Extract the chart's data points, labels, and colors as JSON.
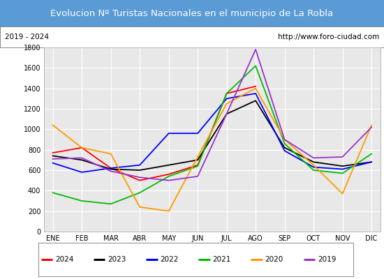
{
  "title": "Evolucion Nº Turistas Nacionales en el municipio de La Robla",
  "subtitle_left": "2019 - 2024",
  "subtitle_right": "http://www.foro-ciudad.com",
  "title_bg_color": "#5b9bd5",
  "title_text_color": "#ffffff",
  "months": [
    "ENE",
    "FEB",
    "MAR",
    "ABR",
    "MAY",
    "JUN",
    "JUL",
    "AGO",
    "SEP",
    "OCT",
    "NOV",
    "DIC"
  ],
  "ylim": [
    0,
    1800
  ],
  "yticks": [
    0,
    200,
    400,
    600,
    800,
    1000,
    1200,
    1400,
    1600,
    1800
  ],
  "series": {
    "2024": {
      "color": "#ff0000",
      "data": [
        770,
        820,
        620,
        500,
        560,
        650,
        1350,
        1420,
        null,
        null,
        null,
        null
      ]
    },
    "2023": {
      "color": "#000000",
      "data": [
        740,
        700,
        610,
        600,
        650,
        700,
        1150,
        1280,
        820,
        680,
        640,
        680
      ]
    },
    "2022": {
      "color": "#0000ff",
      "data": [
        670,
        580,
        620,
        650,
        960,
        960,
        1300,
        1350,
        790,
        630,
        610,
        680
      ]
    },
    "2021": {
      "color": "#00bb00",
      "data": [
        380,
        300,
        270,
        380,
        540,
        640,
        1350,
        1620,
        860,
        600,
        570,
        760
      ]
    },
    "2020": {
      "color": "#ff9900",
      "data": [
        1040,
        820,
        760,
        240,
        200,
        730,
        1250,
        1400,
        900,
        650,
        370,
        1040
      ]
    },
    "2019": {
      "color": "#9933cc",
      "data": [
        710,
        720,
        590,
        530,
        500,
        540,
        1150,
        1780,
        900,
        720,
        730,
        1020
      ]
    }
  },
  "legend_entries": [
    [
      "2024",
      "#ff0000"
    ],
    [
      "2023",
      "#000000"
    ],
    [
      "2022",
      "#0000ff"
    ],
    [
      "2021",
      "#00bb00"
    ],
    [
      "2020",
      "#ff9900"
    ],
    [
      "2019",
      "#9933cc"
    ]
  ],
  "bg_color": "#e8e8e8",
  "grid_color": "#ffffff"
}
